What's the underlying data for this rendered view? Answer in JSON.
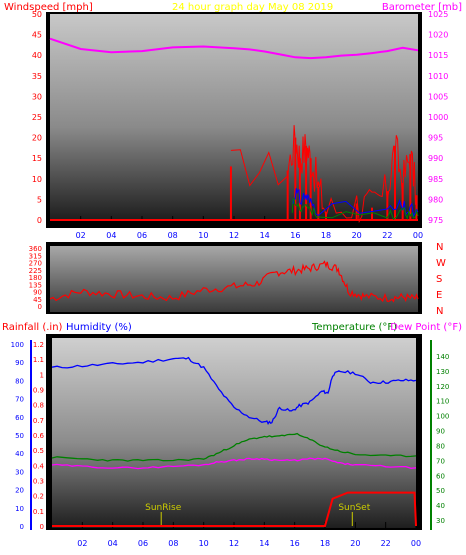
{
  "header": {
    "windspeed_label": "Windspeed [mph]",
    "title": "24 hour graph day   May 08 2019",
    "barometer_label": "Barometer [mb]"
  },
  "direction_labels": [
    "N",
    "W",
    "S",
    "E",
    "N"
  ],
  "bottom_header": {
    "rainfall_label": "Rainfall (.in)",
    "humidity_label": "Humidity (%)",
    "temperature_label": "Temperature (°F)",
    "dewpoint_label": "Dew Point (°F)"
  },
  "colors": {
    "wind": "#ff0000",
    "gust": "#ff0000",
    "wind_blue": "#0000ff",
    "wind_green": "#008000",
    "barometer": "#ff00ff",
    "direction": "#ff0000",
    "rain": "#ff0000",
    "humidity": "#0000ff",
    "temperature": "#008000",
    "dewpoint": "#ff00ff",
    "title": "#ffff00",
    "sun_markers": "#cccc00"
  },
  "chart_data": [
    {
      "type": "line",
      "panel": "wind-barometer",
      "title": "24 hour graph day   May 08 2019",
      "x_ticks": [
        "02",
        "04",
        "06",
        "08",
        "10",
        "12",
        "14",
        "16",
        "18",
        "20",
        "22",
        "00"
      ],
      "ylabel": "Windspeed [mph]",
      "ylim": [
        0,
        50
      ],
      "y_ticks": [
        0,
        5,
        10,
        15,
        20,
        25,
        30,
        35,
        40,
        45,
        50
      ],
      "y2label": "Barometer [mb]",
      "y2lim": [
        975,
        1025
      ],
      "y2_ticks": [
        975,
        980,
        985,
        990,
        995,
        1000,
        1005,
        1010,
        1015,
        1020,
        1025
      ],
      "grid": false,
      "series": [
        {
          "axis": "right",
          "x_hours": [
            0,
            2,
            4,
            6,
            8,
            10,
            12,
            13,
            14,
            15,
            16,
            17,
            18,
            19,
            20,
            21,
            22,
            23,
            24
          ],
          "values": [
            1019,
            1016.5,
            1015.7,
            1016,
            1016.9,
            1017.1,
            1016.7,
            1016.4,
            1015.9,
            1015.2,
            1014.5,
            1014.3,
            1014.5,
            1014.9,
            1015.1,
            1015.5,
            1016,
            1016.8,
            1016.2
          ]
        },
        {
          "axis": "left",
          "x_hours": [
            11.8,
            15.5,
            16.0,
            16.3,
            16.7,
            17.0,
            17.5,
            18.0,
            20.0,
            21.0,
            22.0,
            22.5,
            23.0,
            23.5,
            23.9
          ],
          "values": [
            13,
            12,
            20,
            15,
            18,
            15,
            8,
            2,
            4,
            3,
            7,
            18,
            9,
            16,
            6
          ]
        },
        {
          "axis": "left",
          "x_hours": [
            15.8,
            16.0,
            16.3,
            16.7,
            17.0,
            17.5,
            22.0,
            23.0,
            23.5,
            24.0
          ],
          "values": [
            4,
            7,
            5,
            6,
            4,
            3,
            2,
            3,
            2,
            2
          ]
        },
        {
          "axis": "left",
          "x_hours": [
            15.8,
            16.0,
            16.3,
            16.7,
            17.0,
            17.5,
            22.0,
            23.0,
            23.5,
            24.0
          ],
          "values": [
            3,
            5,
            2,
            4,
            2,
            1,
            1,
            2,
            1,
            1
          ]
        }
      ]
    },
    {
      "type": "line",
      "panel": "wind-direction",
      "ylim": [
        0,
        360
      ],
      "y_ticks": [
        0,
        45,
        90,
        135,
        180,
        225,
        270,
        315,
        360
      ],
      "x_hours": [
        0,
        2,
        4,
        6,
        8,
        10,
        12,
        13.5,
        14.8,
        16,
        17,
        18,
        18.8,
        19.5,
        20.5,
        22,
        23,
        24
      ],
      "values": [
        45,
        90,
        75,
        60,
        50,
        100,
        120,
        140,
        210,
        220,
        235,
        260,
        230,
        90,
        60,
        50,
        55,
        45
      ]
    },
    {
      "type": "line",
      "panel": "rain-humidity-temperature",
      "x_ticks": [
        "02",
        "04",
        "06",
        "08",
        "10",
        "12",
        "14",
        "16",
        "18",
        "20",
        "22",
        "00"
      ],
      "y_rain_ticks": [
        0,
        0.1,
        0.2,
        0.3,
        0.4,
        0.5,
        0.6,
        0.7,
        0.8,
        0.9,
        1,
        1.1,
        1.2
      ],
      "y_rain_lim": [
        0,
        1.2
      ],
      "y_humidity_ticks": [
        0,
        10,
        20,
        30,
        40,
        50,
        60,
        70,
        80,
        90,
        100
      ],
      "y_humidity_lim": [
        0,
        100
      ],
      "y_temp_ticks": [
        30,
        40,
        50,
        60,
        70,
        80,
        90,
        100,
        110,
        120,
        130,
        140
      ],
      "y_temp_lim": [
        26,
        148
      ],
      "annotations": [
        "SunRise",
        "SunSet"
      ],
      "series": [
        {
          "axis": "humidity",
          "x_hours": [
            0,
            2,
            4,
            6,
            8,
            9,
            10,
            11,
            12,
            13,
            14,
            14.5,
            15,
            15.8,
            16.3,
            17,
            17.8,
            18.2,
            18.5,
            19,
            20,
            21,
            22,
            23,
            24
          ],
          "values": [
            87,
            88,
            89,
            90,
            92,
            92,
            87,
            75,
            65,
            60,
            57,
            57,
            65,
            63,
            66,
            68,
            74,
            73,
            83,
            85,
            84,
            79,
            79,
            80,
            80
          ]
        },
        {
          "axis": "temperature",
          "x_hours": [
            0,
            2,
            4,
            6,
            8,
            10,
            11,
            12,
            13,
            14,
            15,
            16,
            17,
            18,
            19,
            20,
            22,
            24
          ],
          "values": [
            72,
            71,
            70,
            70,
            70,
            71,
            75,
            80,
            84,
            86,
            86,
            88,
            84,
            79,
            76,
            74,
            73,
            73
          ]
        },
        {
          "axis": "temperature",
          "x_hours": [
            0,
            2,
            4,
            6,
            8,
            10,
            11,
            12,
            13,
            14,
            15,
            16,
            17,
            18,
            19,
            20,
            22,
            24
          ],
          "values": [
            67,
            66,
            65,
            65,
            66,
            67,
            69,
            70,
            71,
            71,
            70,
            70,
            71,
            71,
            68,
            67,
            66,
            65
          ]
        },
        {
          "axis": "rain",
          "x_hours": [
            0,
            18.0,
            18.5,
            19.5,
            20.0,
            23.9,
            24.0
          ],
          "values": [
            0,
            0,
            0.18,
            0.22,
            0.22,
            0.22,
            0
          ]
        }
      ]
    }
  ]
}
